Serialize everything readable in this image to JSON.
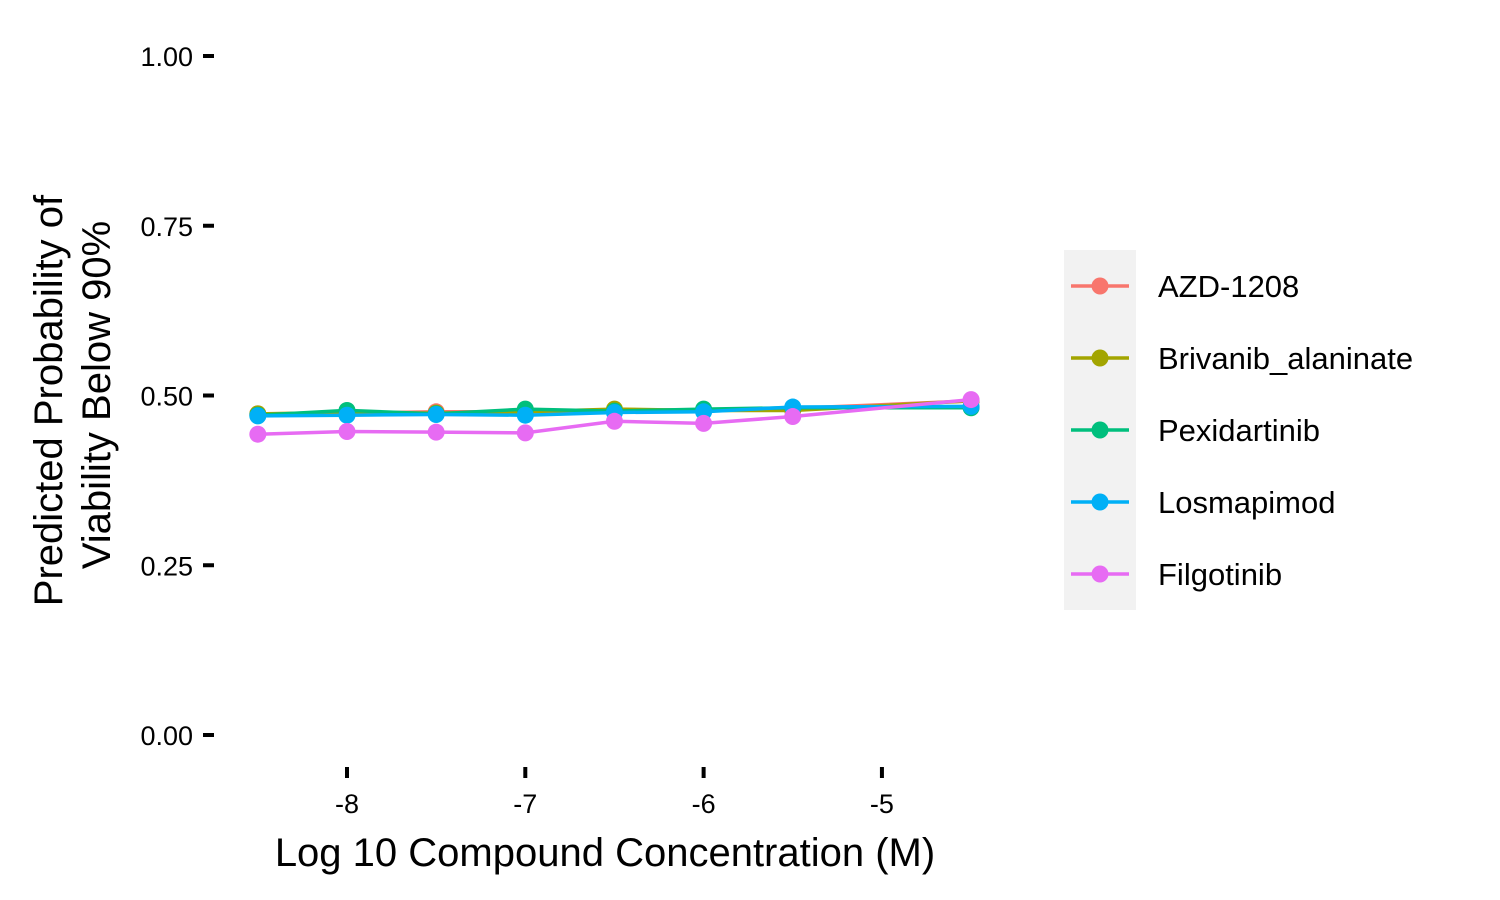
{
  "chart_data": {
    "type": "line",
    "title": "",
    "xlabel": "Log 10 Compound Concentration (M)",
    "ylabel": [
      "Predicted Probability of",
      "Viability Below 90%"
    ],
    "xlim": [
      -8.6,
      -4.45
    ],
    "ylim": [
      0,
      1
    ],
    "x_ticks": [
      -8,
      -7,
      -6,
      -5
    ],
    "x_tick_labels": [
      "-8",
      "-7",
      "-6",
      "-5"
    ],
    "y_ticks": [
      0,
      0.25,
      0.5,
      0.75,
      1
    ],
    "y_tick_labels": [
      "0.00",
      "0.25",
      "0.50",
      "0.75",
      "1.00"
    ],
    "grid": false,
    "legend_position": "right",
    "x": [
      -8.5,
      -8.0,
      -7.5,
      -7.0,
      -6.5,
      -6.0,
      -5.5,
      -4.5
    ],
    "series": [
      {
        "name": "AZD-1208",
        "color": "#F8766D",
        "values": [
          0.473,
          0.474,
          0.476,
          0.476,
          0.478,
          0.479,
          0.481,
          0.492
        ]
      },
      {
        "name": "Brivanib_alaninate",
        "color": "#A3A500",
        "values": [
          0.473,
          0.475,
          0.474,
          0.476,
          0.48,
          0.478,
          0.478,
          0.492
        ]
      },
      {
        "name": "Pexidartinib",
        "color": "#00BF7D",
        "values": [
          0.471,
          0.478,
          0.473,
          0.48,
          0.477,
          0.48,
          0.482,
          0.482
        ]
      },
      {
        "name": "Losmapimod",
        "color": "#00B0F6",
        "values": [
          0.47,
          0.471,
          0.472,
          0.471,
          0.475,
          0.476,
          0.483,
          0.484
        ]
      },
      {
        "name": "Filgotinib",
        "color": "#E76BF3",
        "values": [
          0.443,
          0.447,
          0.446,
          0.445,
          0.462,
          0.459,
          0.469,
          0.494
        ]
      }
    ]
  }
}
